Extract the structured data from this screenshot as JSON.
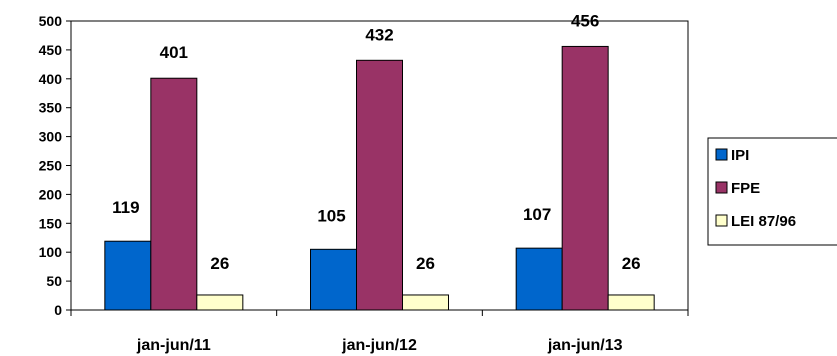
{
  "chart_data": {
    "type": "bar",
    "title": "",
    "xlabel": "",
    "ylabel": "",
    "categories": [
      "jan-jun/11",
      "jan-jun/12",
      "jan-jun/13"
    ],
    "series": [
      {
        "name": "IPI",
        "values": [
          119,
          105,
          107
        ],
        "color": "#0066cc"
      },
      {
        "name": "FPE",
        "values": [
          401,
          432,
          456
        ],
        "color": "#993366"
      },
      {
        "name": "LEI 87/96",
        "values": [
          26,
          26,
          26
        ],
        "color": "#ffffcc"
      }
    ],
    "ylim": [
      0,
      500
    ],
    "yticks": [
      0,
      50,
      100,
      150,
      200,
      250,
      300,
      350,
      400,
      450,
      500
    ],
    "grid": false,
    "legend": "right",
    "data_labels": true
  }
}
